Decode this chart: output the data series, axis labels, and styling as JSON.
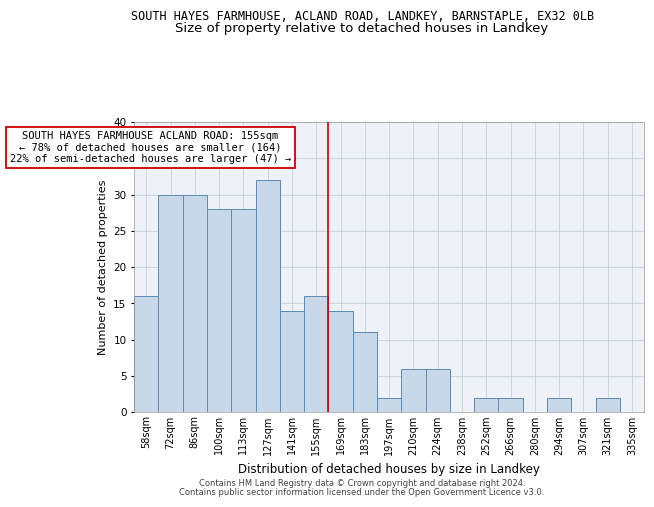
{
  "title_line1": "SOUTH HAYES FARMHOUSE, ACLAND ROAD, LANDKEY, BARNSTAPLE, EX32 0LB",
  "title_line2": "Size of property relative to detached houses in Landkey",
  "xlabel": "Distribution of detached houses by size in Landkey",
  "ylabel": "Number of detached properties",
  "categories": [
    "58sqm",
    "72sqm",
    "86sqm",
    "100sqm",
    "113sqm",
    "127sqm",
    "141sqm",
    "155sqm",
    "169sqm",
    "183sqm",
    "197sqm",
    "210sqm",
    "224sqm",
    "238sqm",
    "252sqm",
    "266sqm",
    "280sqm",
    "294sqm",
    "307sqm",
    "321sqm",
    "335sqm"
  ],
  "values": [
    16,
    30,
    30,
    28,
    28,
    32,
    14,
    16,
    14,
    11,
    2,
    6,
    6,
    0,
    2,
    2,
    0,
    2,
    0,
    2,
    0
  ],
  "bar_color": "#c8d8e8",
  "bar_edge_color": "#5a8ab8",
  "vline_color": "#cc0000",
  "annotation_text": "SOUTH HAYES FARMHOUSE ACLAND ROAD: 155sqm\n← 78% of detached houses are smaller (164)\n22% of semi-detached houses are larger (47) →",
  "annotation_box_color": "#ffffff",
  "annotation_box_edge": "#cc0000",
  "ylim": [
    0,
    40
  ],
  "yticks": [
    0,
    5,
    10,
    15,
    20,
    25,
    30,
    35,
    40
  ],
  "grid_color": "#c8d0dc",
  "background_color": "#eef2f8",
  "footer_line1": "Contains HM Land Registry data © Crown copyright and database right 2024.",
  "footer_line2": "Contains public sector information licensed under the Open Government Licence v3.0.",
  "title1_fontsize": 8.5,
  "title2_fontsize": 9.5,
  "xlabel_fontsize": 8.5,
  "ylabel_fontsize": 8.0,
  "tick_fontsize": 7.0,
  "ann_fontsize": 7.5,
  "footer_fontsize": 6.0
}
